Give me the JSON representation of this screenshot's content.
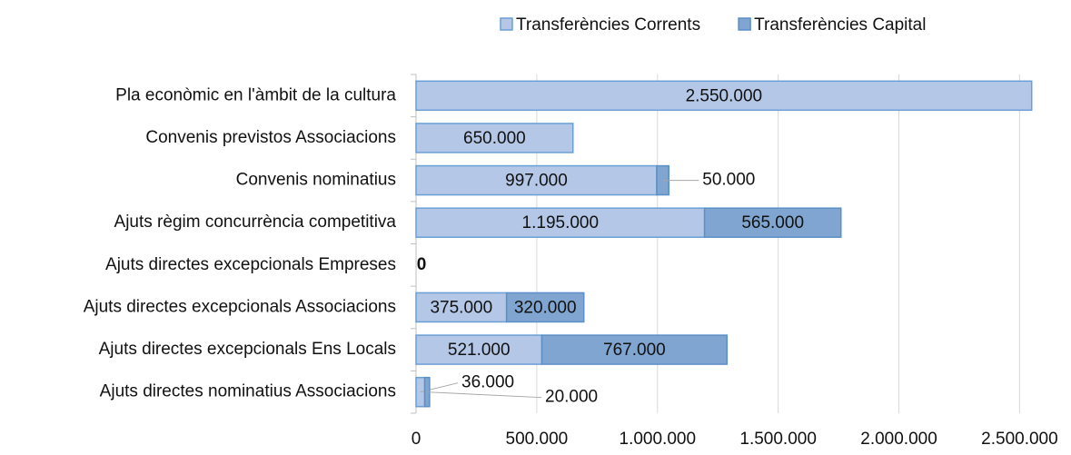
{
  "chart_data": {
    "type": "stacked_barh",
    "categories": [
      "Pla econòmic en l'àmbit de la cultura",
      "Convenis previstos Associacions",
      "Convenis nominatius",
      "Ajuts règim concurrència competitiva",
      "Ajuts directes excepcionals Empreses",
      "Ajuts directes excepcionals Associacions",
      "Ajuts directes excepcionals Ens Locals",
      "Ajuts directes nominatius Associacions"
    ],
    "series": [
      {
        "name": "Transferències Corrents",
        "color": "#b4c7e7",
        "edge": "#6a9fd6",
        "values": [
          2550000,
          650000,
          997000,
          1195000,
          0,
          375000,
          521000,
          36000
        ],
        "value_labels": [
          "2.550.000",
          "650.000",
          "997.000",
          "1.195.000",
          "0",
          "375.000",
          "521.000",
          "36.000"
        ]
      },
      {
        "name": "Transferències Capital",
        "color": "#7fa5d0",
        "edge": "#5b8fc7",
        "values": [
          null,
          null,
          50000,
          565000,
          null,
          320000,
          767000,
          20000
        ],
        "value_labels": [
          null,
          null,
          "50.000",
          "565.000",
          null,
          "320.000",
          "767.000",
          "20.000"
        ]
      }
    ],
    "xlim": [
      0,
      2600000
    ],
    "xticks": [
      0,
      {
        "value": 500000,
        "label": "500.000"
      },
      {
        "value": 1000000,
        "label": "1.000.000"
      },
      {
        "value": 1500000,
        "label": "1.500.000"
      },
      {
        "value": 2000000,
        "label": "2.000.000"
      },
      {
        "value": 2500000,
        "label": "2.500.000"
      }
    ],
    "grid": true,
    "legend": "top"
  }
}
